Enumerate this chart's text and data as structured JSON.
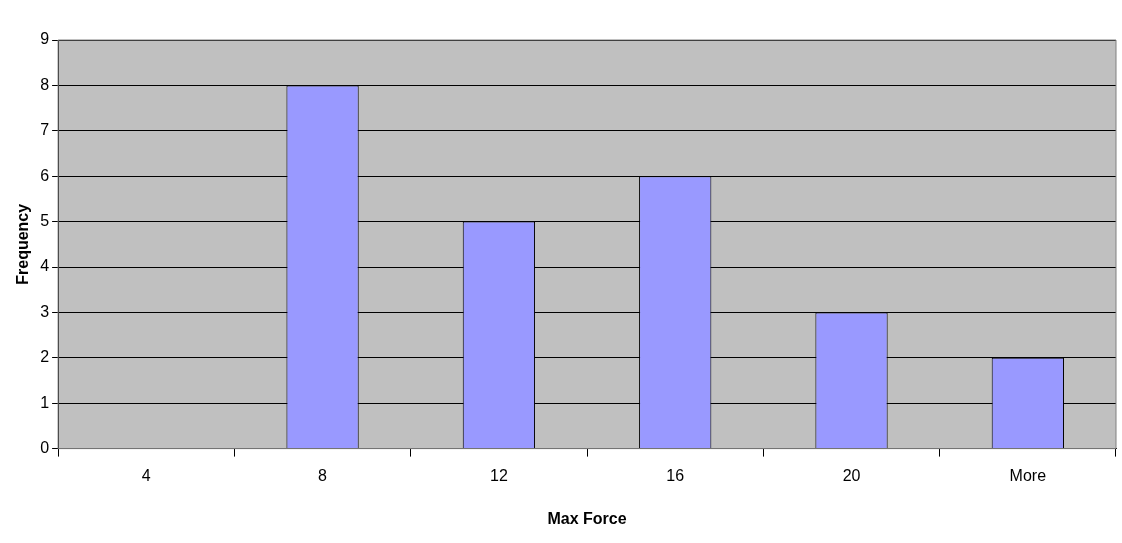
{
  "chart_data": {
    "type": "bar",
    "xlabel": "Max Force",
    "ylabel": "Frequency",
    "categories": [
      "4",
      "8",
      "12",
      "16",
      "20",
      "More"
    ],
    "values": [
      0,
      8,
      5,
      6,
      3,
      2
    ],
    "color": "#9999ff",
    "ylim": [
      0,
      9
    ],
    "yticks": [
      0,
      1,
      2,
      3,
      4,
      5,
      6,
      7,
      8,
      9
    ],
    "grid": "y",
    "legend": false
  }
}
